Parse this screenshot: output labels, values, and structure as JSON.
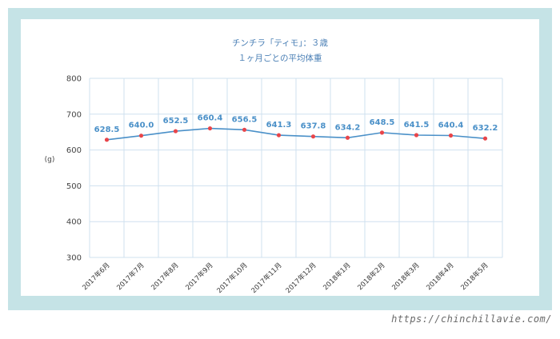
{
  "colors": {
    "frame": "#c5e3e6",
    "line": "#4a90c8",
    "marker": "#e8454a",
    "grid": "#cfe0ef",
    "label": "#4a90c8"
  },
  "watermark": "https://chinchillavie.com/",
  "chart_data": {
    "type": "line",
    "title": "チンチラ「ティモ」：３歳",
    "subtitle": "１ヶ月ごとの平均体重",
    "ylabel": "(g)",
    "xlabel": "",
    "ylim": [
      300,
      800
    ],
    "yticks": [
      300,
      400,
      500,
      600,
      700,
      800
    ],
    "ytick_labels": [
      "300",
      "400",
      "500",
      "600",
      "700",
      "800"
    ],
    "grid": true,
    "categories": [
      "2017年6月",
      "2017年7月",
      "2017年8月",
      "2017年9月",
      "2017年10月",
      "2017年11月",
      "2017年12月",
      "2018年1月",
      "2018年2月",
      "2018年3月",
      "2018年4月",
      "2018年5月"
    ],
    "series": [
      {
        "values": [
          628.5,
          640.0,
          652.5,
          660.4,
          656.5,
          641.3,
          637.8,
          634.2,
          648.5,
          641.5,
          640.4,
          632.2
        ],
        "labels": [
          "628.5",
          "640.0",
          "652.5",
          "660.4",
          "656.5",
          "641.3",
          "637.8",
          "634.2",
          "648.5",
          "641.5",
          "640.4",
          "632.2"
        ]
      }
    ]
  }
}
